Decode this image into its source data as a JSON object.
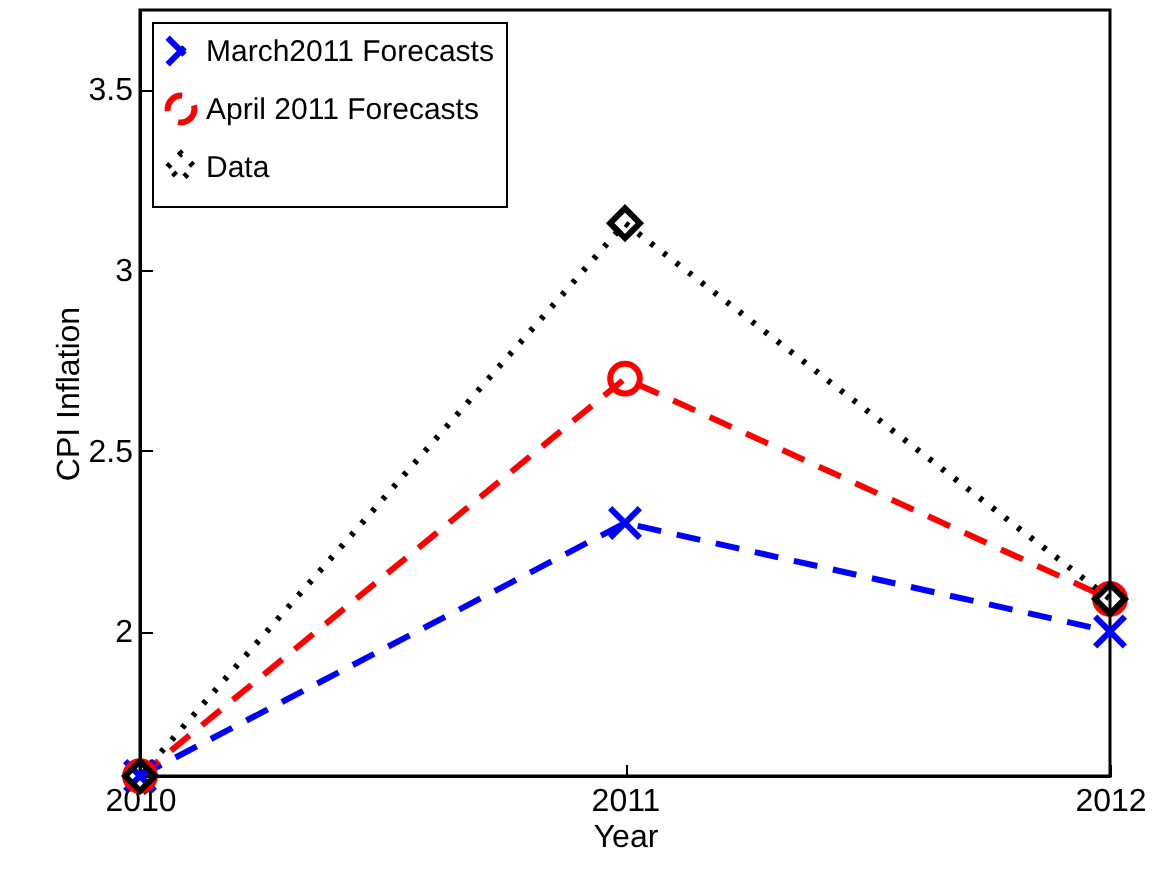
{
  "chart_data": {
    "type": "line",
    "xlabel": "Year",
    "ylabel": "CPI Inflation",
    "x": [
      2010,
      2011,
      2012
    ],
    "xlim": [
      2010,
      2012
    ],
    "xticks": [
      2010,
      2011,
      2012
    ],
    "ylim": [
      1.6,
      3.72
    ],
    "yticks": [
      2,
      2.5,
      3,
      3.5
    ],
    "grid": false,
    "legend": "top left",
    "series": [
      {
        "name": "March2011 Forecasts",
        "color": "#0000ff",
        "values": [
          1.6,
          2.3,
          2.0
        ],
        "marker": "cross",
        "line_style": "dashed"
      },
      {
        "name": "April 2011 Forecasts",
        "color": "#ff0000",
        "values": [
          1.6,
          2.7,
          2.09
        ],
        "marker": "circle",
        "line_style": "dashed"
      },
      {
        "name": "Data",
        "color": "#000000",
        "values": [
          1.6,
          3.13,
          2.09
        ],
        "marker": "diamond",
        "line_style": "dotted"
      }
    ]
  }
}
